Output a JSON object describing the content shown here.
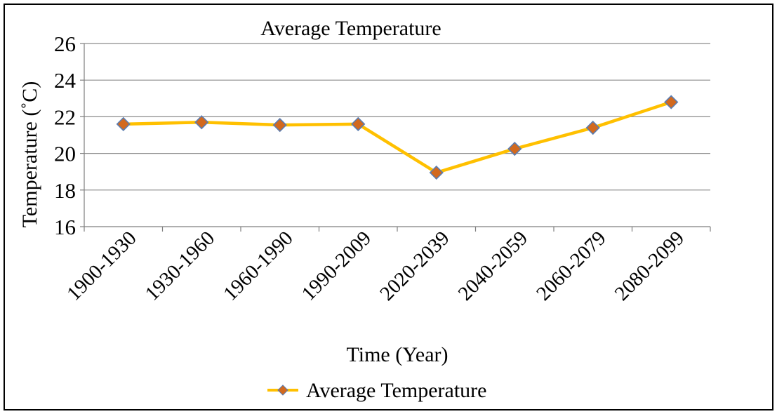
{
  "chart_data": {
    "type": "line",
    "title": "Average Temperature",
    "xlabel": "Time (Year)",
    "ylabel": "Temperature (˚C)",
    "categories": [
      "1900-1930",
      "1930-1960",
      "1960-1990",
      "1990-2009",
      "2020-2039",
      "2040-2059",
      "2060-2079",
      "2080-2099"
    ],
    "series": [
      {
        "name": "Average Temperature",
        "values": [
          21.6,
          21.7,
          21.55,
          21.6,
          18.95,
          20.25,
          21.4,
          22.8
        ]
      }
    ],
    "ylim": [
      16,
      26
    ],
    "yticks": [
      16,
      18,
      20,
      22,
      24,
      26
    ],
    "grid": true,
    "legend": "bottom-center"
  },
  "colors": {
    "line": "#FFC000",
    "marker_fill": "#D2691E",
    "marker_stroke": "#5B7DB1",
    "grid": "#8C8C8C",
    "axis": "#7F7F7F"
  }
}
